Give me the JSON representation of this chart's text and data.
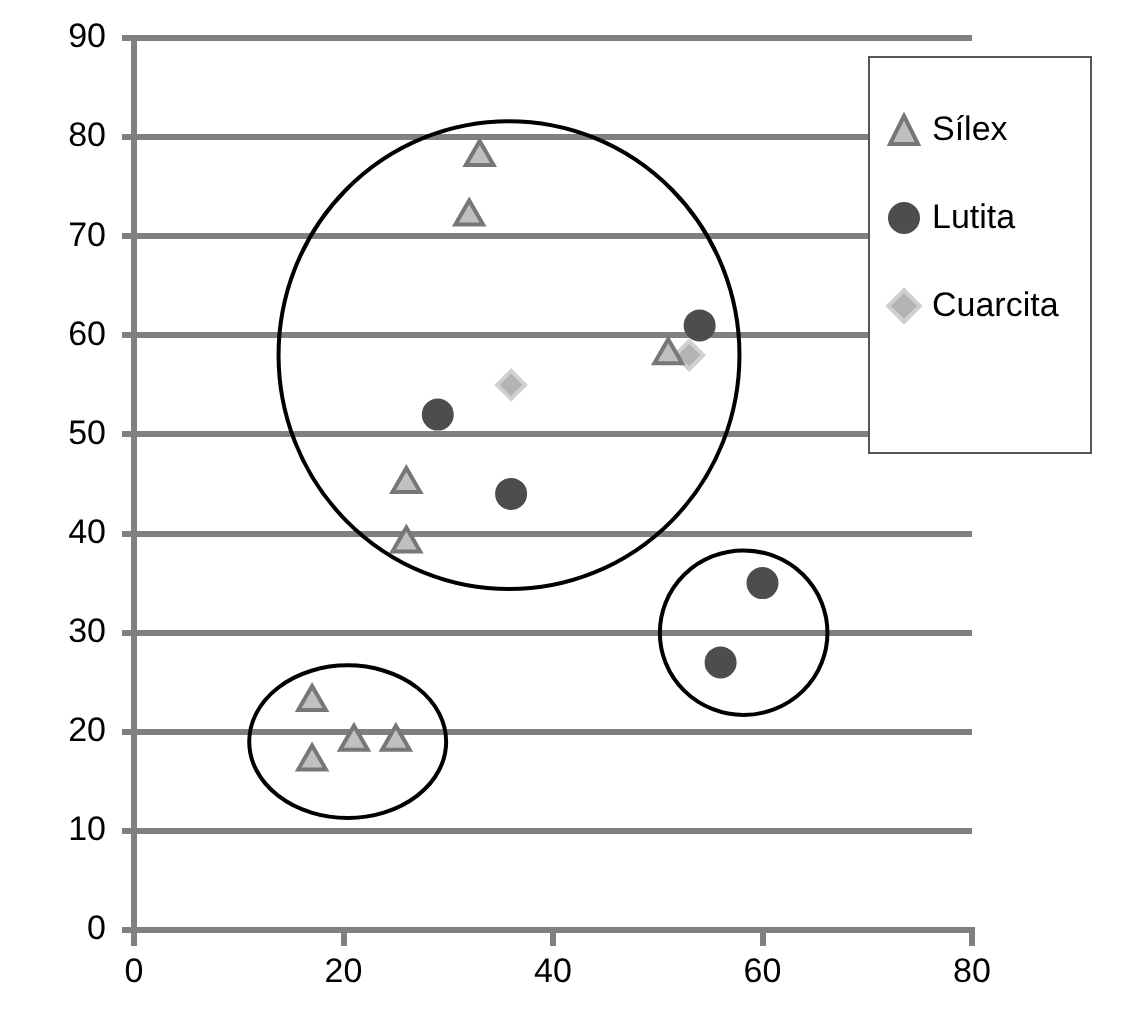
{
  "chart_data": {
    "type": "scatter",
    "series": [
      {
        "name": "Sílex",
        "color": "#c0c0c0",
        "marker": "triangle",
        "x": [
          17,
          17,
          21,
          25,
          26,
          26,
          32,
          33,
          51
        ],
        "values": [
          23,
          17,
          19,
          19,
          39,
          45,
          72,
          78,
          58
        ]
      },
      {
        "name": "Lutita",
        "color": "#4d4d4d",
        "marker": "circle",
        "x": [
          29,
          36,
          54,
          56,
          60
        ],
        "values": [
          52,
          44,
          61,
          27,
          35
        ]
      },
      {
        "name": "Cuarcita",
        "color": "#b3b3b3",
        "marker": "diamond",
        "x": [
          36,
          53
        ],
        "values": [
          55,
          58
        ]
      }
    ],
    "xlim": [
      0,
      80
    ],
    "xticks": [
      0,
      20,
      40,
      60,
      80
    ],
    "ylim": [
      0,
      90
    ],
    "yticks": [
      0,
      10,
      20,
      30,
      40,
      50,
      60,
      70,
      80,
      90
    ],
    "grid": "y",
    "legend": "top right"
  }
}
